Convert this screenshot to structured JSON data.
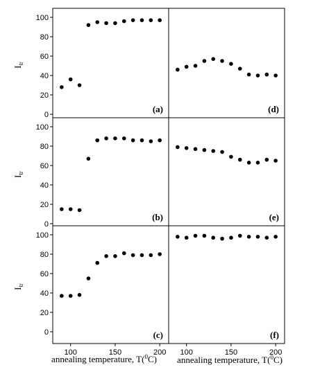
{
  "chart_data": [
    {
      "type": "scatter",
      "panel": "(a)",
      "ylabel": "Itr",
      "ylim": [
        0,
        100
      ],
      "x": [
        90,
        100,
        110,
        120,
        130,
        140,
        150,
        160,
        170,
        180,
        190,
        200
      ],
      "y": [
        28,
        36,
        30,
        92,
        95,
        94,
        94,
        96,
        97,
        97,
        97,
        97
      ]
    },
    {
      "type": "scatter",
      "panel": "(d)",
      "ylim": [
        0,
        100
      ],
      "x": [
        90,
        100,
        110,
        120,
        130,
        140,
        150,
        160,
        170,
        180,
        190,
        200
      ],
      "y": [
        46,
        49,
        50,
        55,
        57,
        55,
        52,
        47,
        41,
        40,
        41,
        40
      ]
    },
    {
      "type": "scatter",
      "panel": "(b)",
      "ylabel": "Itr",
      "ylim": [
        0,
        100
      ],
      "x": [
        90,
        100,
        110,
        120,
        130,
        140,
        150,
        160,
        170,
        180,
        190,
        200
      ],
      "y": [
        15,
        15,
        14,
        67,
        86,
        88,
        88,
        88,
        86,
        86,
        85,
        86
      ]
    },
    {
      "type": "scatter",
      "panel": "(e)",
      "ylim": [
        0,
        100
      ],
      "x": [
        90,
        100,
        110,
        120,
        130,
        140,
        150,
        160,
        170,
        180,
        190,
        200
      ],
      "y": [
        79,
        78,
        77,
        76,
        75,
        74,
        69,
        66,
        63,
        63,
        66,
        65
      ]
    },
    {
      "type": "scatter",
      "panel": "(c)",
      "ylabel": "Itr",
      "xlabel": "annealing temperature, T(0C)",
      "ylim": [
        0,
        100
      ],
      "x": [
        90,
        100,
        110,
        120,
        130,
        140,
        150,
        160,
        170,
        180,
        190,
        200
      ],
      "y": [
        37,
        37,
        38,
        55,
        71,
        78,
        78,
        81,
        79,
        79,
        79,
        80
      ]
    },
    {
      "type": "scatter",
      "panel": "(f)",
      "xlabel": "annealing temperature, T(0C)",
      "ylim": [
        0,
        100
      ],
      "x": [
        90,
        100,
        110,
        120,
        130,
        140,
        150,
        160,
        170,
        180,
        190,
        200
      ],
      "y": [
        98,
        97,
        99,
        99,
        97,
        96,
        97,
        99,
        98,
        98,
        97,
        98
      ]
    }
  ],
  "y_ticks": [
    "0",
    "20",
    "40",
    "60",
    "80",
    "100"
  ],
  "x_ticks": [
    "100",
    "150",
    "200"
  ],
  "ylabel_main": "I",
  "ylabel_sub": "tr",
  "xlabel_pre": "annealing temperature, T(",
  "xlabel_sup": "0",
  "xlabel_post": "C)"
}
